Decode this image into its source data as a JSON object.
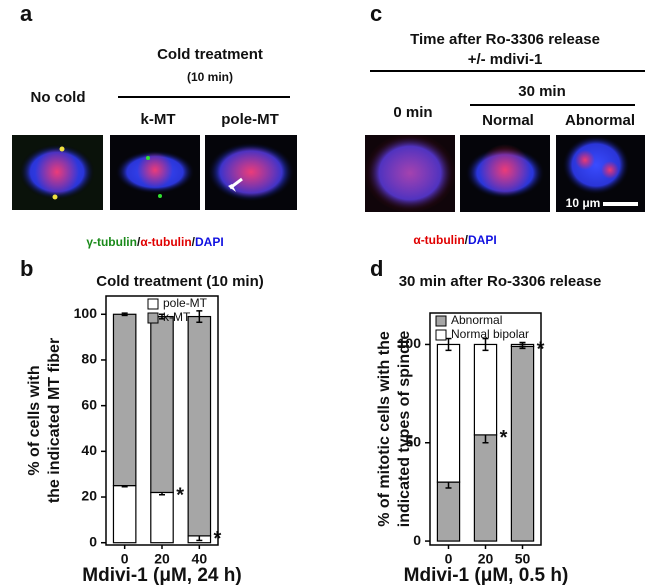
{
  "figure": {
    "panel_a": {
      "letter": "a",
      "heading": "Cold treatment",
      "subheading": "(10 min)",
      "no_cold": "No cold",
      "labels": [
        "k-MT",
        "pole-MT"
      ],
      "stain": [
        "γ-tubulin",
        "/",
        "α-tubulin",
        "/",
        "DAPI"
      ]
    },
    "panel_c": {
      "letter": "c",
      "heading": [
        "Time after Ro-3306 release",
        "+/- mdivi-1"
      ],
      "time0": "0 min",
      "time30": "30 min",
      "labels": [
        "Normal",
        "Abnormal"
      ],
      "scale_bar": "10 μm",
      "stain": [
        "α-tubulin",
        "/",
        "DAPI"
      ]
    },
    "panel_b": {
      "letter": "b"
    },
    "panel_d": {
      "letter": "d"
    }
  },
  "chart_data": [
    {
      "type": "bar",
      "stacked": true,
      "title": "Cold treatment (10 min)",
      "ylabel": [
        "% of cells with",
        "the indicated MT fiber"
      ],
      "xlabel": "Mdivi-1 (μM, 24 h)",
      "categories": [
        "0",
        "20",
        "40"
      ],
      "series": [
        {
          "name": "pole-MT",
          "color": "#ffffff",
          "values": [
            25,
            22,
            3
          ],
          "errors": [
            0.5,
            1,
            2
          ],
          "significance": [
            null,
            "*",
            "*"
          ]
        },
        {
          "name": "k-MT",
          "color": "#a6a6a6",
          "values": [
            75,
            77,
            96
          ],
          "errors": [
            0.5,
            1,
            2.5
          ]
        }
      ],
      "ylim": [
        -1,
        108
      ],
      "yticks": [
        0,
        20,
        40,
        60,
        80,
        100
      ],
      "legend": "upper right"
    },
    {
      "type": "bar",
      "stacked": true,
      "title": "30  min after Ro-3306 release",
      "ylabel": [
        "% of mitotic cells with the",
        "indicated types of spindle"
      ],
      "xlabel": "Mdivi-1 (μM, 0.5 h)",
      "categories": [
        "0",
        "20",
        "50"
      ],
      "series": [
        {
          "name": "Abnormal",
          "color": "#a6a6a6",
          "values": [
            30,
            54,
            99
          ],
          "errors": [
            3,
            4,
            1
          ],
          "significance": [
            null,
            "*",
            "*"
          ]
        },
        {
          "name": "Normal bipolar",
          "color": "#ffffff",
          "values": [
            70,
            46,
            1
          ],
          "errors": [
            3,
            3,
            1
          ]
        }
      ],
      "ylim": [
        -2,
        116
      ],
      "yticks": [
        0,
        50,
        100
      ],
      "legend": "upper right"
    }
  ]
}
